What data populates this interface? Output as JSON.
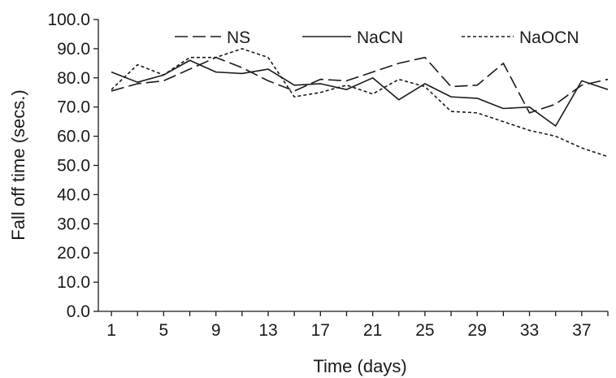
{
  "chart_data": {
    "type": "line",
    "title": "",
    "xlabel": "Time (days)",
    "ylabel": "Fall off time (secs.)",
    "x": [
      1,
      3,
      5,
      7,
      9,
      11,
      13,
      15,
      17,
      19,
      21,
      23,
      25,
      27,
      29,
      31,
      33,
      35,
      37,
      39
    ],
    "x_tick_labels": [
      "1",
      "5",
      "9",
      "13",
      "17",
      "21",
      "25",
      "29",
      "33",
      "37"
    ],
    "x_tick_values": [
      1,
      5,
      9,
      13,
      17,
      21,
      25,
      29,
      33,
      37
    ],
    "y_tick_labels": [
      "0.0",
      "10.0",
      "20.0",
      "30.0",
      "40.0",
      "50.0",
      "60.0",
      "70.0",
      "80.0",
      "90.0",
      "100.0"
    ],
    "y_tick_values": [
      0,
      10,
      20,
      30,
      40,
      50,
      60,
      70,
      80,
      90,
      100
    ],
    "xlim": [
      0,
      39
    ],
    "ylim": [
      0,
      100
    ],
    "grid": false,
    "legend_position": "top",
    "series": [
      {
        "name": "NS",
        "dash": "dashed",
        "values": [
          75.5,
          78.0,
          79.0,
          83.0,
          87.0,
          83.5,
          79.0,
          75.5,
          79.5,
          79.0,
          82.0,
          85.0,
          87.0,
          77.0,
          77.5,
          85.0,
          68.0,
          71.0,
          77.5,
          79.5
        ]
      },
      {
        "name": "NaCN",
        "dash": "solid",
        "values": [
          82.0,
          78.5,
          81.0,
          86.0,
          82.0,
          81.5,
          83.0,
          77.5,
          78.0,
          76.0,
          80.0,
          72.5,
          78.0,
          73.5,
          73.0,
          69.5,
          70.0,
          63.5,
          79.0,
          76.0
        ]
      },
      {
        "name": "NaOCN",
        "dash": "dotted",
        "values": [
          76.0,
          84.5,
          81.0,
          87.0,
          87.0,
          90.0,
          87.0,
          73.5,
          75.0,
          77.5,
          74.5,
          79.5,
          77.0,
          68.5,
          68.0,
          65.0,
          62.0,
          60.0,
          56.0,
          53.0
        ]
      }
    ]
  }
}
